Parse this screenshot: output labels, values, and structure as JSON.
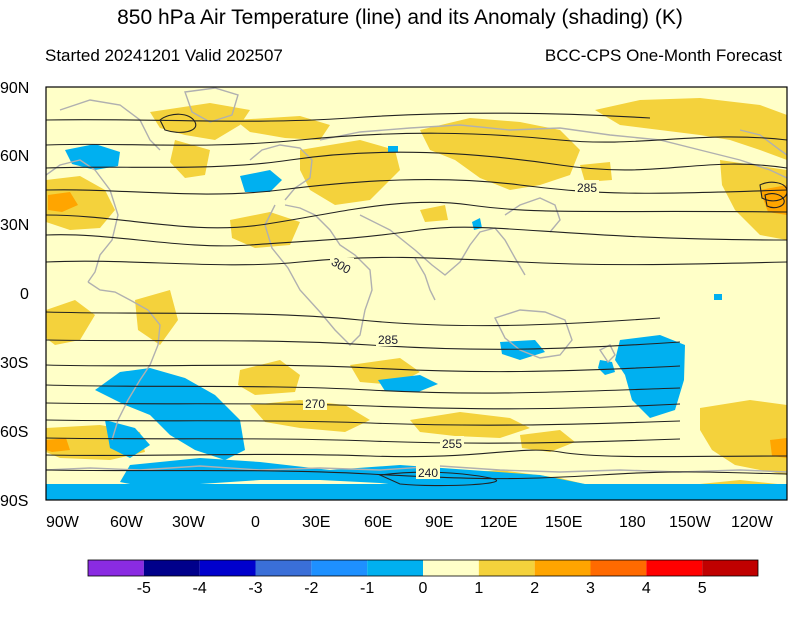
{
  "title": "850 hPa Air Temperature (line) and its Anomaly (shading) (K)",
  "subtitle_left": "Started 20241201  Valid 202507",
  "subtitle_right": "BCC-CPS One-Month Forecast",
  "lat_labels": [
    "90N",
    "60N",
    "30N",
    "0",
    "30S",
    "60S",
    "90S"
  ],
  "lon_labels": [
    "90W",
    "60W",
    "30W",
    "0",
    "30E",
    "60E",
    "90E",
    "120E",
    "150E",
    "180",
    "150W",
    "120W"
  ],
  "contour_labels": [
    {
      "text": "285",
      "near": "east Asia"
    },
    {
      "text": "300",
      "near": "Middle East"
    },
    {
      "text": "285",
      "near": "Indian Ocean"
    },
    {
      "text": "270",
      "near": "South Atlantic / southern Africa"
    },
    {
      "text": "255",
      "near": "Southern Ocean"
    },
    {
      "text": "240",
      "near": "Antarctica"
    }
  ],
  "colorbar": {
    "ticks": [
      "-5",
      "-4",
      "-3",
      "-2",
      "-1",
      "0",
      "1",
      "2",
      "3",
      "4",
      "5"
    ],
    "colors": [
      "#8a2be2",
      "#00008b",
      "#0000cd",
      "#3a6fd8",
      "#1e90ff",
      "#00b0f0",
      "#ffffc8",
      "#f4d23c",
      "#ffa500",
      "#ff6a00",
      "#ff0000",
      "#c00000"
    ]
  },
  "colors": {
    "background_anomaly": "#ffffc8",
    "positive_anomaly": "#f4d23c",
    "negative_anomaly": "#00b0f0",
    "coastline": "#b0b0b0",
    "contour": "#222222"
  }
}
